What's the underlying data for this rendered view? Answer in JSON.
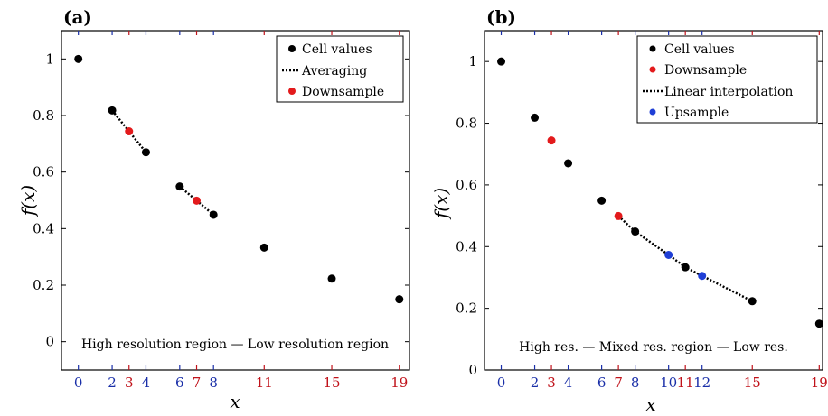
{
  "colors": {
    "cell": "#000000",
    "down": "#e31a1c",
    "up": "#1f3fd6",
    "tick_blue": "#1a2fa8",
    "tick_red": "#c0121a"
  },
  "chart_data": [
    {
      "type": "scatter",
      "panel_label": "(a)",
      "xlabel": "x",
      "ylabel": "f(x)",
      "xlim": [
        -1,
        19.6
      ],
      "ylim": [
        -0.1,
        1.1
      ],
      "yticks": [
        "0",
        "0.2",
        "0.4",
        "0.6",
        "0.8",
        "1"
      ],
      "ytick_values": [
        0,
        0.2,
        0.4,
        0.6,
        0.8,
        1
      ],
      "xticks": [
        {
          "value": 0,
          "label": "0",
          "color": "blue"
        },
        {
          "value": 2,
          "label": "2",
          "color": "blue"
        },
        {
          "value": 3,
          "label": "3",
          "color": "red"
        },
        {
          "value": 4,
          "label": "4",
          "color": "blue"
        },
        {
          "value": 6,
          "label": "6",
          "color": "blue"
        },
        {
          "value": 7,
          "label": "7",
          "color": "red"
        },
        {
          "value": 8,
          "label": "8",
          "color": "blue"
        },
        {
          "value": 11,
          "label": "11",
          "color": "red"
        },
        {
          "value": 15,
          "label": "15",
          "color": "red"
        },
        {
          "value": 19,
          "label": "19",
          "color": "red"
        }
      ],
      "legend": [
        "Cell values",
        "Averaging",
        "Downsample"
      ],
      "legend_placement": "top-right",
      "series": [
        {
          "name": "Cell values",
          "kind": "points",
          "color": "cell",
          "points": [
            [
              0,
              1.0
            ],
            [
              2,
              0.818
            ],
            [
              4,
              0.67
            ],
            [
              6,
              0.549
            ],
            [
              8,
              0.449
            ],
            [
              11,
              0.333
            ],
            [
              15,
              0.223
            ],
            [
              19,
              0.15
            ]
          ]
        },
        {
          "name": "Averaging",
          "kind": "dotted-line",
          "color": "cell",
          "segments": [
            [
              [
                2,
                0.818
              ],
              [
                4,
                0.67
              ]
            ],
            [
              [
                6,
                0.549
              ],
              [
                8,
                0.449
              ]
            ]
          ]
        },
        {
          "name": "Downsample",
          "kind": "points",
          "color": "down",
          "points": [
            [
              3,
              0.744
            ],
            [
              7,
              0.499
            ]
          ]
        }
      ],
      "annotation": "High resolution region — Low resolution region"
    },
    {
      "type": "scatter",
      "panel_label": "(b)",
      "xlabel": "x",
      "ylabel": "f(x)",
      "xlim": [
        -1,
        19.2
      ],
      "ylim": [
        0,
        1.1
      ],
      "yticks": [
        "0",
        "0.2",
        "0.4",
        "0.6",
        "0.8",
        "1"
      ],
      "ytick_values": [
        0,
        0.2,
        0.4,
        0.6,
        0.8,
        1
      ],
      "xticks": [
        {
          "value": 0,
          "label": "0",
          "color": "blue"
        },
        {
          "value": 2,
          "label": "2",
          "color": "blue"
        },
        {
          "value": 3,
          "label": "3",
          "color": "red"
        },
        {
          "value": 4,
          "label": "4",
          "color": "blue"
        },
        {
          "value": 6,
          "label": "6",
          "color": "blue"
        },
        {
          "value": 7,
          "label": "7",
          "color": "red"
        },
        {
          "value": 8,
          "label": "8",
          "color": "blue"
        },
        {
          "value": 10,
          "label": "10",
          "color": "blue"
        },
        {
          "value": 11,
          "label": "11",
          "color": "red"
        },
        {
          "value": 12,
          "label": "12",
          "color": "blue"
        },
        {
          "value": 15,
          "label": "15",
          "color": "red"
        },
        {
          "value": 19,
          "label": "19",
          "color": "red"
        }
      ],
      "legend": [
        "Cell values",
        "Downsample",
        "Linear interpolation",
        "Upsample"
      ],
      "legend_placement": "top-right",
      "series": [
        {
          "name": "Cell values",
          "kind": "points",
          "color": "cell",
          "points": [
            [
              0,
              1.0
            ],
            [
              2,
              0.818
            ],
            [
              4,
              0.67
            ],
            [
              6,
              0.549
            ],
            [
              8,
              0.449
            ],
            [
              11,
              0.333
            ],
            [
              15,
              0.223
            ],
            [
              19,
              0.15
            ]
          ]
        },
        {
          "name": "Linear interpolation",
          "kind": "dotted-line",
          "color": "cell",
          "segments": [
            [
              [
                7,
                0.499
              ],
              [
                8,
                0.449
              ],
              [
                10,
                0.373
              ],
              [
                11,
                0.333
              ],
              [
                12,
                0.305
              ],
              [
                15,
                0.223
              ]
            ]
          ]
        },
        {
          "name": "Downsample",
          "kind": "points",
          "color": "down",
          "points": [
            [
              3,
              0.744
            ],
            [
              7,
              0.499
            ]
          ]
        },
        {
          "name": "Upsample",
          "kind": "points",
          "color": "up",
          "points": [
            [
              10,
              0.373
            ],
            [
              12,
              0.305
            ]
          ]
        }
      ],
      "annotation": "High res. — Mixed res. region — Low res."
    }
  ]
}
